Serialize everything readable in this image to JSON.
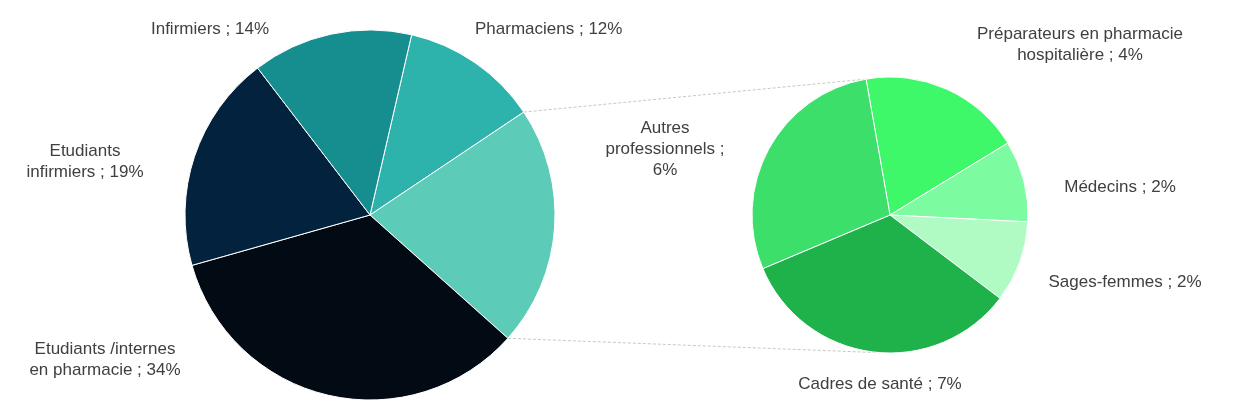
{
  "chart_data": [
    {
      "type": "pie",
      "categories": [
        "Pharmaciens",
        null,
        "Etudiants /internes en pharmacie",
        "Etudiants infirmiers",
        "Infirmiers"
      ],
      "values": [
        12,
        21,
        34,
        19,
        14
      ],
      "colors": [
        "#2db3ac",
        "#5ccbb8",
        "#020a14",
        "#03223d",
        "#168d8f"
      ],
      "value_labels": [
        "; 12%",
        null,
        "; 34%",
        "; 19%",
        "; 14%"
      ]
    },
    {
      "type": "pie",
      "categories": [
        "Préparateurs en pharmacie hospitalière",
        "Médecins",
        "Sages-femmes",
        "Cadres de santé",
        "Autres professionnels"
      ],
      "values": [
        4,
        2,
        2,
        7,
        6
      ],
      "colors": [
        "#3ff86a",
        "#7dfba0",
        "#b0fbc4",
        "#1fb24a",
        "#3ddf6b"
      ],
      "value_labels": [
        "; 4%",
        "; 2%",
        "; 2%",
        "; 7%",
        "; 6%"
      ]
    }
  ]
}
